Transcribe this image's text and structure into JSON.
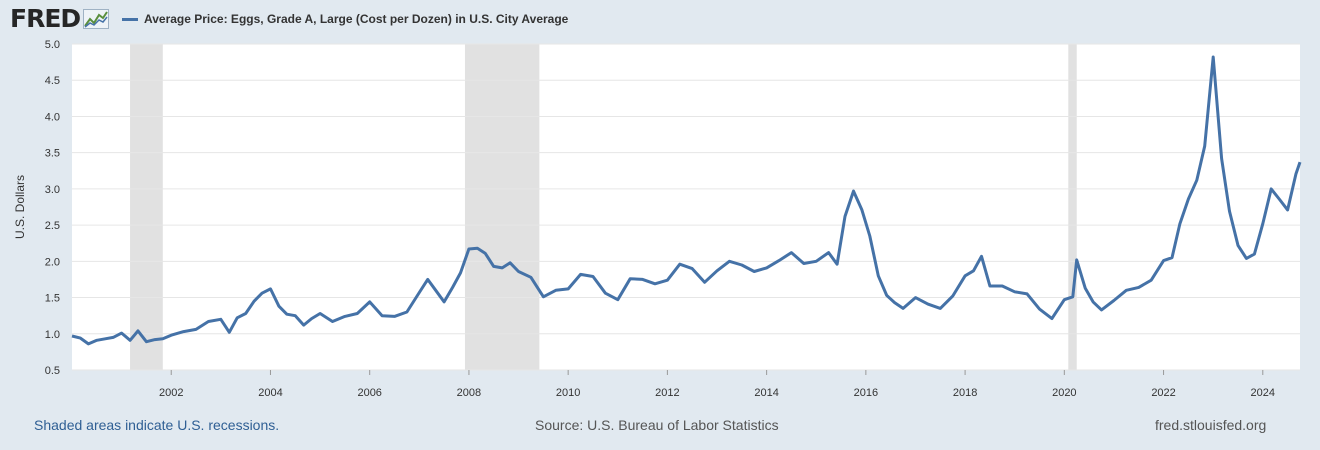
{
  "header": {
    "logo_text": "FRED",
    "legend_label": "Average Price: Eggs, Grade A, Large (Cost per Dozen) in U.S. City Average"
  },
  "footer": {
    "recession_note": "Shaded areas indicate U.S. recessions.",
    "source": "Source: U.S. Bureau of Labor Statistics",
    "site": "fred.stlouisfed.org"
  },
  "colors": {
    "series": "#4572a7",
    "recession": "#e1e1e1",
    "grid": "#e6e6e6",
    "background": "#e1e9f0"
  },
  "chart_data": {
    "type": "line",
    "title": "",
    "xlabel": "",
    "ylabel": "U.S. Dollars",
    "xlim": [
      2000.0,
      2024.75
    ],
    "ylim": [
      0.5,
      5.0
    ],
    "y_ticks": [
      "0.5",
      "1.0",
      "1.5",
      "2.0",
      "2.5",
      "3.0",
      "3.5",
      "4.0",
      "4.5",
      "5.0"
    ],
    "x_ticks": [
      "2002",
      "2004",
      "2006",
      "2008",
      "2010",
      "2012",
      "2014",
      "2016",
      "2018",
      "2020",
      "2022",
      "2024"
    ],
    "grid": "horizontal",
    "legend": "top-left",
    "recessions": [
      [
        2001.17,
        2001.83
      ],
      [
        2007.92,
        2009.42
      ],
      [
        2020.08,
        2020.25
      ]
    ],
    "series": [
      {
        "name": "Average Price: Eggs, Grade A, Large (Cost per Dozen) in U.S. City Average",
        "x": [
          2000.0,
          2000.17,
          2000.33,
          2000.5,
          2000.67,
          2000.83,
          2001.0,
          2001.17,
          2001.33,
          2001.5,
          2001.67,
          2001.83,
          2002.0,
          2002.25,
          2002.5,
          2002.75,
          2003.0,
          2003.17,
          2003.33,
          2003.5,
          2003.67,
          2003.83,
          2004.0,
          2004.17,
          2004.33,
          2004.5,
          2004.67,
          2004.83,
          2005.0,
          2005.25,
          2005.5,
          2005.75,
          2006.0,
          2006.25,
          2006.5,
          2006.75,
          2007.0,
          2007.17,
          2007.33,
          2007.5,
          2007.67,
          2007.83,
          2008.0,
          2008.17,
          2008.33,
          2008.5,
          2008.67,
          2008.83,
          2009.0,
          2009.25,
          2009.5,
          2009.75,
          2010.0,
          2010.25,
          2010.5,
          2010.75,
          2011.0,
          2011.25,
          2011.5,
          2011.75,
          2012.0,
          2012.25,
          2012.5,
          2012.75,
          2013.0,
          2013.25,
          2013.5,
          2013.75,
          2014.0,
          2014.25,
          2014.5,
          2014.75,
          2015.0,
          2015.25,
          2015.42,
          2015.58,
          2015.75,
          2015.92,
          2016.08,
          2016.25,
          2016.42,
          2016.58,
          2016.75,
          2017.0,
          2017.25,
          2017.5,
          2017.75,
          2018.0,
          2018.17,
          2018.33,
          2018.5,
          2018.75,
          2019.0,
          2019.25,
          2019.5,
          2019.75,
          2020.0,
          2020.17,
          2020.25,
          2020.42,
          2020.58,
          2020.75,
          2021.0,
          2021.25,
          2021.5,
          2021.75,
          2022.0,
          2022.17,
          2022.33,
          2022.5,
          2022.67,
          2022.83,
          2023.0,
          2023.17,
          2023.33,
          2023.5,
          2023.67,
          2023.83,
          2024.0,
          2024.17,
          2024.33,
          2024.5,
          2024.67,
          2024.75
        ],
        "values": [
          0.97,
          0.94,
          0.86,
          0.91,
          0.93,
          0.95,
          1.01,
          0.91,
          1.04,
          0.89,
          0.92,
          0.93,
          0.98,
          1.03,
          1.06,
          1.17,
          1.2,
          1.02,
          1.22,
          1.28,
          1.45,
          1.56,
          1.62,
          1.38,
          1.27,
          1.25,
          1.12,
          1.21,
          1.28,
          1.17,
          1.24,
          1.28,
          1.44,
          1.25,
          1.24,
          1.3,
          1.57,
          1.75,
          1.6,
          1.44,
          1.64,
          1.84,
          2.17,
          2.18,
          2.11,
          1.93,
          1.91,
          1.98,
          1.86,
          1.78,
          1.51,
          1.6,
          1.62,
          1.82,
          1.79,
          1.56,
          1.47,
          1.76,
          1.75,
          1.69,
          1.74,
          1.96,
          1.9,
          1.71,
          1.87,
          2.0,
          1.95,
          1.86,
          1.91,
          2.01,
          2.12,
          1.97,
          2.0,
          2.12,
          1.96,
          2.62,
          2.97,
          2.71,
          2.35,
          1.8,
          1.53,
          1.43,
          1.35,
          1.5,
          1.41,
          1.35,
          1.52,
          1.8,
          1.87,
          2.07,
          1.66,
          1.66,
          1.58,
          1.55,
          1.34,
          1.21,
          1.47,
          1.51,
          2.02,
          1.63,
          1.44,
          1.33,
          1.46,
          1.6,
          1.64,
          1.74,
          2.01,
          2.05,
          2.52,
          2.86,
          3.12,
          3.59,
          4.82,
          3.42,
          2.69,
          2.22,
          2.04,
          2.1,
          2.52,
          3.0,
          2.86,
          2.71,
          3.21,
          3.37
        ]
      }
    ]
  }
}
